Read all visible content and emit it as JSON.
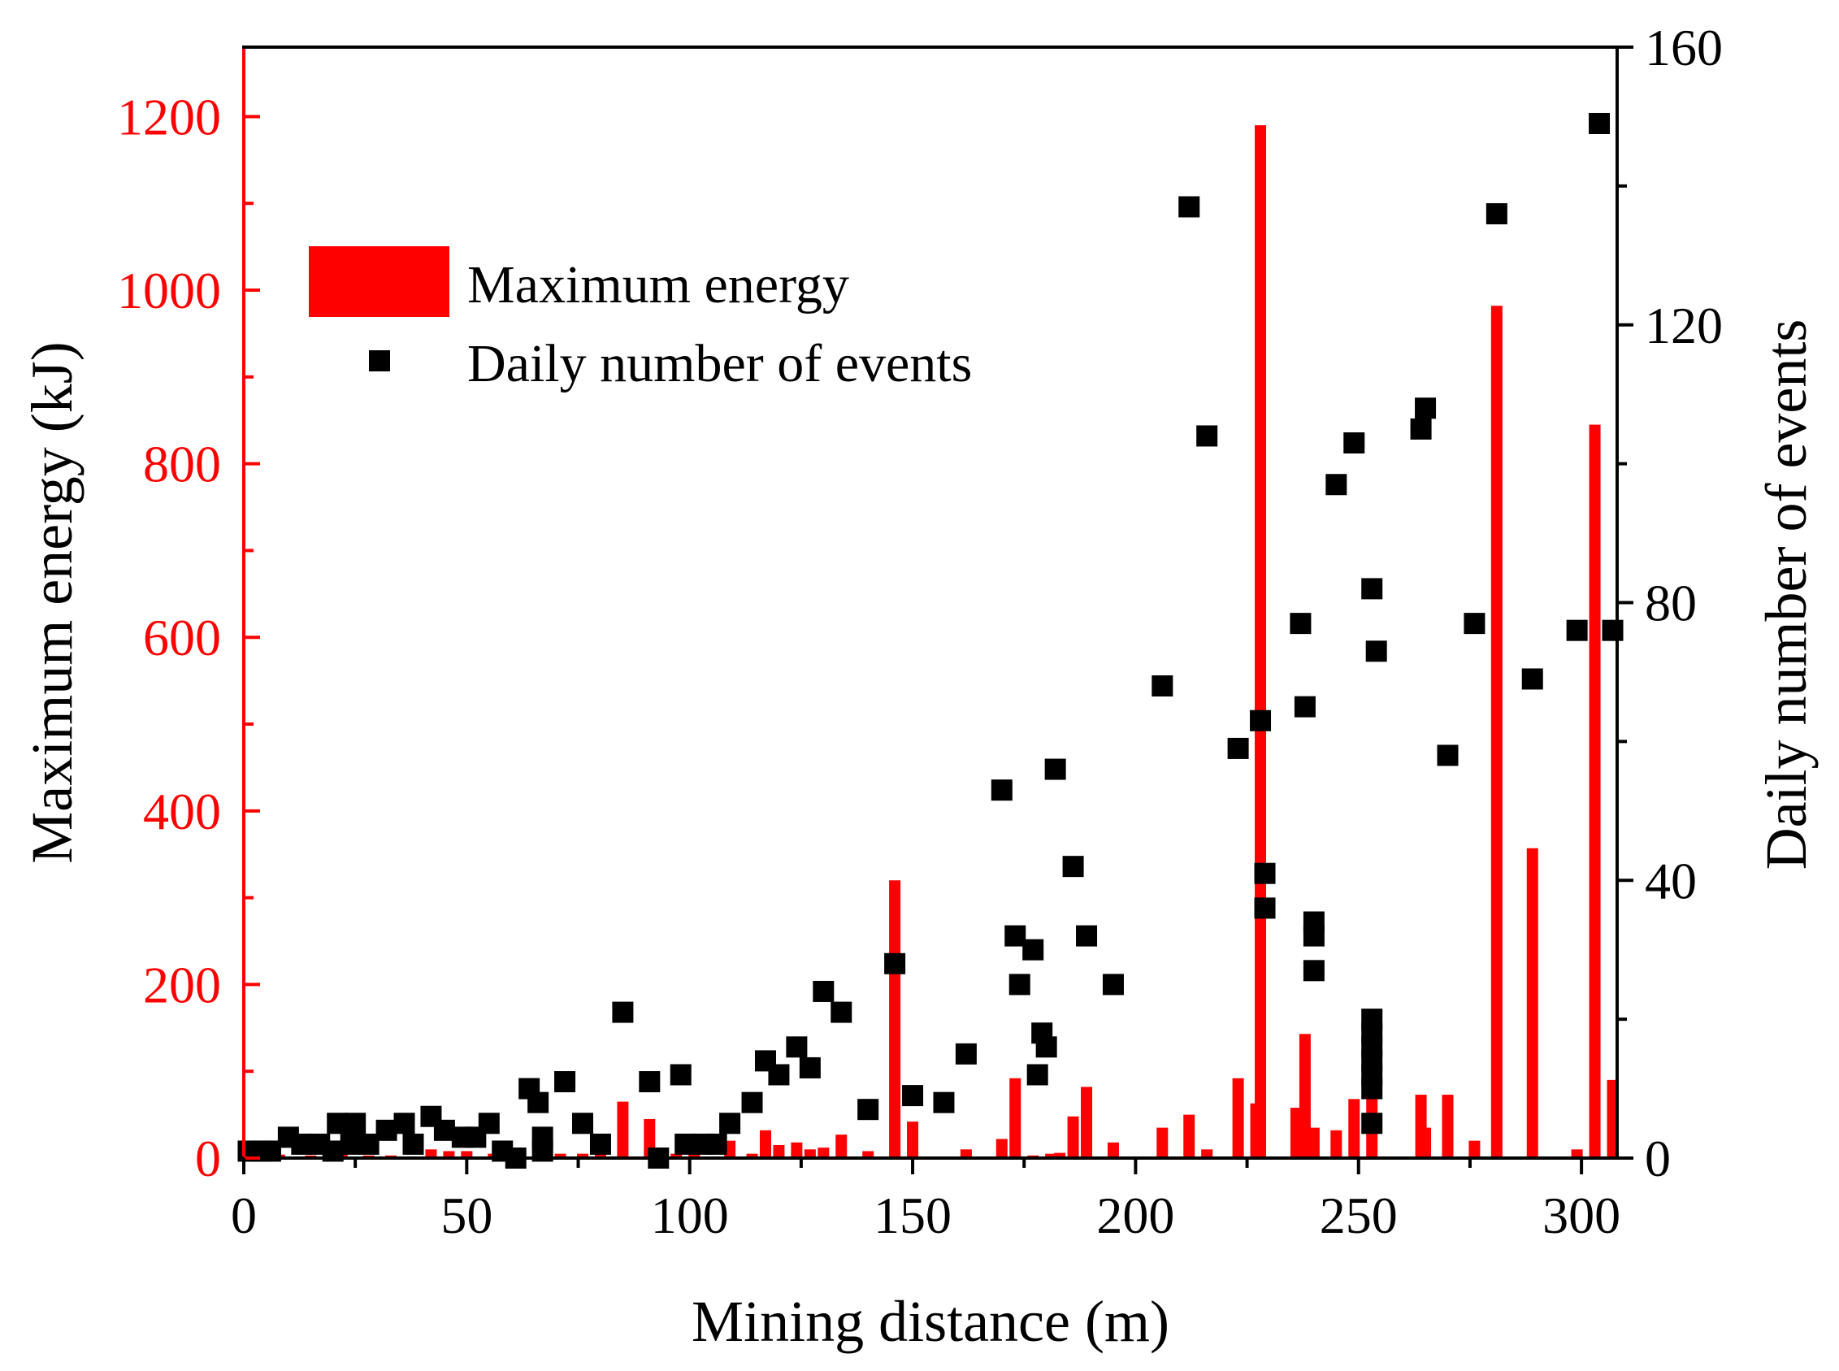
{
  "chart_data": {
    "type": "bar+scatter",
    "title": "",
    "xlabel": "Mining distance (m)",
    "ylabel_left": "Maximum energy (kJ)",
    "ylabel_right": "Daily number of events",
    "xlim": [
      0,
      308
    ],
    "ylim_left": [
      0,
      1280
    ],
    "ylim_right": [
      0,
      160
    ],
    "x_ticks": [
      0,
      50,
      100,
      150,
      200,
      250,
      300
    ],
    "y_left_ticks": [
      0,
      200,
      400,
      600,
      800,
      1000,
      1200
    ],
    "y_right_ticks": [
      0,
      40,
      80,
      120,
      160
    ],
    "grid": false,
    "legend_position": "upper-left",
    "colors": {
      "energy": "#ff0000",
      "events": "#000000",
      "left_axis": "#ff0000",
      "right_axis": "#000000"
    },
    "series": [
      {
        "name": "Maximum energy",
        "kind": "bar",
        "axis": "left",
        "points": [
          [
            2,
            5
          ],
          [
            8,
            4
          ],
          [
            15,
            3
          ],
          [
            22,
            5
          ],
          [
            28,
            3
          ],
          [
            33,
            3
          ],
          [
            42,
            10
          ],
          [
            46,
            8
          ],
          [
            50,
            8
          ],
          [
            56,
            5
          ],
          [
            61,
            5
          ],
          [
            66,
            5
          ],
          [
            71,
            5
          ],
          [
            76,
            5
          ],
          [
            80,
            5
          ],
          [
            85,
            65
          ],
          [
            91,
            45
          ],
          [
            97,
            5
          ],
          [
            101,
            5
          ],
          [
            109,
            20
          ],
          [
            114,
            5
          ],
          [
            117,
            32
          ],
          [
            120,
            15
          ],
          [
            124,
            18
          ],
          [
            127,
            10
          ],
          [
            130,
            12
          ],
          [
            134,
            27
          ],
          [
            140,
            8
          ],
          [
            146,
            320
          ],
          [
            150,
            42
          ],
          [
            162,
            10
          ],
          [
            170,
            22
          ],
          [
            173,
            92
          ],
          [
            177,
            3
          ],
          [
            181,
            5
          ],
          [
            183,
            6
          ],
          [
            186,
            48
          ],
          [
            189,
            82
          ],
          [
            195,
            18
          ],
          [
            206,
            35
          ],
          [
            212,
            50
          ],
          [
            216,
            10
          ],
          [
            223,
            92
          ],
          [
            227,
            63
          ],
          [
            228,
            1190
          ],
          [
            236,
            58
          ],
          [
            238,
            143
          ],
          [
            240,
            35
          ],
          [
            245,
            32
          ],
          [
            249,
            68
          ],
          [
            253,
            80
          ],
          [
            264,
            73
          ],
          [
            265,
            35
          ],
          [
            270,
            73
          ],
          [
            276,
            20
          ],
          [
            281,
            982
          ],
          [
            289,
            357
          ],
          [
            299,
            10
          ],
          [
            303,
            845
          ],
          [
            307,
            90
          ]
        ]
      },
      {
        "name": "Daily number of events",
        "kind": "scatter",
        "axis": "right",
        "points": [
          [
            1,
            1
          ],
          [
            4,
            1
          ],
          [
            6,
            1
          ],
          [
            10,
            3
          ],
          [
            13,
            2
          ],
          [
            17,
            2
          ],
          [
            20,
            1
          ],
          [
            21,
            5
          ],
          [
            24,
            2
          ],
          [
            25,
            5
          ],
          [
            28,
            2
          ],
          [
            32,
            4
          ],
          [
            36,
            5
          ],
          [
            38,
            2
          ],
          [
            42,
            6
          ],
          [
            45,
            4
          ],
          [
            49,
            3
          ],
          [
            52,
            3
          ],
          [
            55,
            5
          ],
          [
            58,
            1
          ],
          [
            61,
            0
          ],
          [
            64,
            10
          ],
          [
            66,
            8
          ],
          [
            67,
            1
          ],
          [
            67,
            3
          ],
          [
            72,
            11
          ],
          [
            76,
            5
          ],
          [
            80,
            2
          ],
          [
            85,
            21
          ],
          [
            91,
            11
          ],
          [
            93,
            0
          ],
          [
            98,
            12
          ],
          [
            99,
            2
          ],
          [
            103,
            2
          ],
          [
            106,
            2
          ],
          [
            109,
            5
          ],
          [
            114,
            8
          ],
          [
            117,
            14
          ],
          [
            120,
            12
          ],
          [
            124,
            16
          ],
          [
            127,
            13
          ],
          [
            130,
            24
          ],
          [
            134,
            21
          ],
          [
            140,
            7
          ],
          [
            146,
            28
          ],
          [
            150,
            9
          ],
          [
            157,
            8
          ],
          [
            162,
            15
          ],
          [
            170,
            53
          ],
          [
            173,
            32
          ],
          [
            174,
            25
          ],
          [
            177,
            30
          ],
          [
            178,
            12
          ],
          [
            179,
            18
          ],
          [
            180,
            16
          ],
          [
            182,
            56
          ],
          [
            186,
            42
          ],
          [
            189,
            32
          ],
          [
            195,
            25
          ],
          [
            206,
            68
          ],
          [
            212,
            137
          ],
          [
            216,
            104
          ],
          [
            223,
            59
          ],
          [
            228,
            63
          ],
          [
            229,
            41
          ],
          [
            229,
            36
          ],
          [
            237,
            77
          ],
          [
            238,
            65
          ],
          [
            240,
            34
          ],
          [
            240,
            32
          ],
          [
            240,
            27
          ],
          [
            245,
            97
          ],
          [
            249,
            103
          ],
          [
            253,
            82
          ],
          [
            253,
            20
          ],
          [
            253,
            18
          ],
          [
            253,
            16
          ],
          [
            253,
            14
          ],
          [
            253,
            12
          ],
          [
            253,
            10
          ],
          [
            253,
            5
          ],
          [
            254,
            73
          ],
          [
            264,
            105
          ],
          [
            265,
            108
          ],
          [
            270,
            58
          ],
          [
            276,
            77
          ],
          [
            281,
            136
          ],
          [
            289,
            69
          ],
          [
            299,
            76
          ],
          [
            304,
            149
          ],
          [
            307,
            76
          ]
        ]
      }
    ]
  }
}
